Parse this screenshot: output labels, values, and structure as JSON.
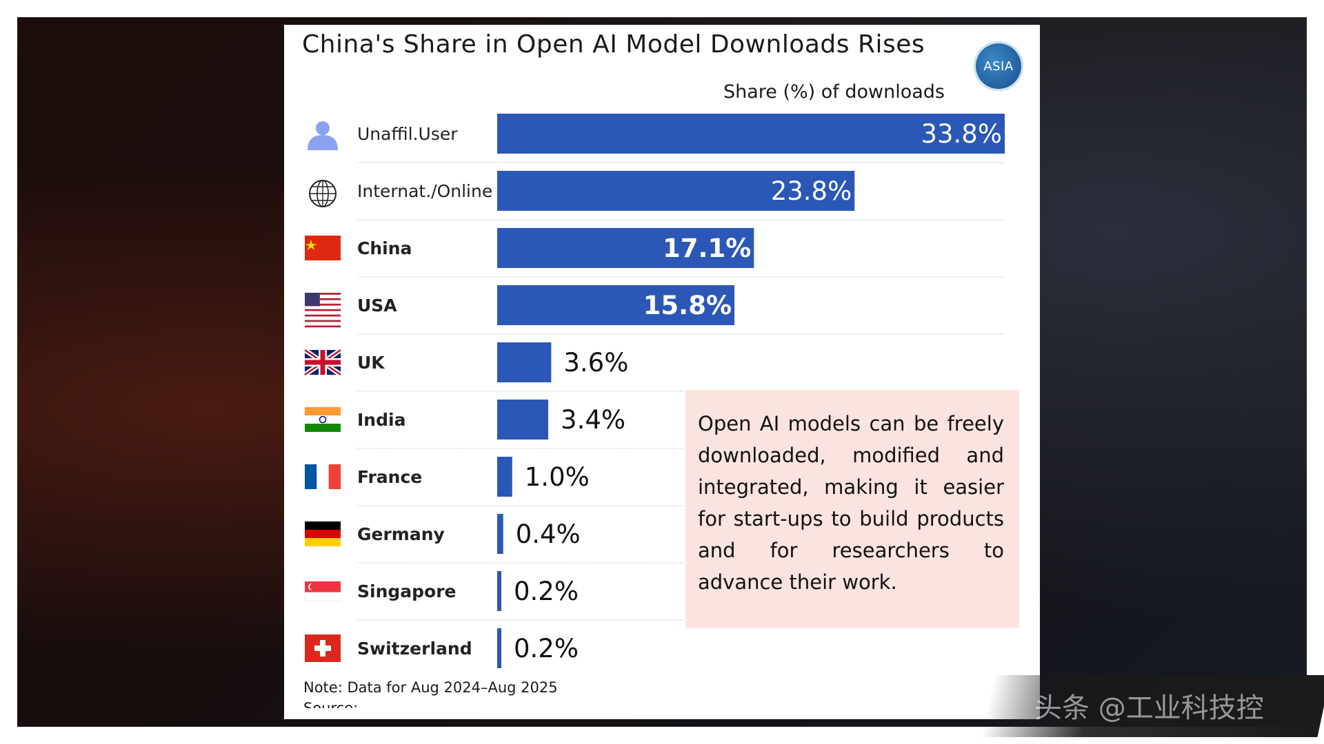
{
  "title": "China's Share in Open AI Model Downloads Rises",
  "badge": "ASIA",
  "chart_data": {
    "type": "bar",
    "orientation": "horizontal",
    "title": "China's Share in Open AI Model Downloads Rises",
    "xlabel": "Share (%) of downloads",
    "categories": [
      "Unaffil.User",
      "Internat./Online",
      "China",
      "USA",
      "UK",
      "India",
      "France",
      "Germany",
      "Singapore",
      "Switzerland"
    ],
    "values": [
      33.8,
      23.8,
      17.1,
      15.8,
      3.6,
      3.4,
      1.0,
      0.4,
      0.2,
      0.2
    ],
    "value_labels": [
      "33.8%",
      "23.8%",
      "17.1%",
      "15.8%",
      "3.6%",
      "3.4%",
      "1.0%",
      "0.4%",
      "0.2%",
      "0.2%"
    ],
    "bold_categories": [
      "China",
      "USA",
      "UK",
      "India",
      "France",
      "Germany",
      "Singapore",
      "Switzerland"
    ],
    "icons": [
      "user-icon",
      "globe-icon",
      "china-flag-icon",
      "usa-flag-icon",
      "uk-flag-icon",
      "india-flag-icon",
      "france-flag-icon",
      "germany-flag-icon",
      "singapore-flag-icon",
      "switzerland-flag-icon"
    ],
    "xlim": [
      0,
      33.8
    ],
    "bar_color": "#2b57b6",
    "grid": false
  },
  "callout": "Open AI models can be freely downloaded, modified and integrated, making it easier for start-ups to build products and for researchers to advance their work.",
  "note": "Note: Data for Aug 2024–Aug 2025",
  "source_partial": "Source: ...",
  "watermark": "头条 @工业科技控"
}
